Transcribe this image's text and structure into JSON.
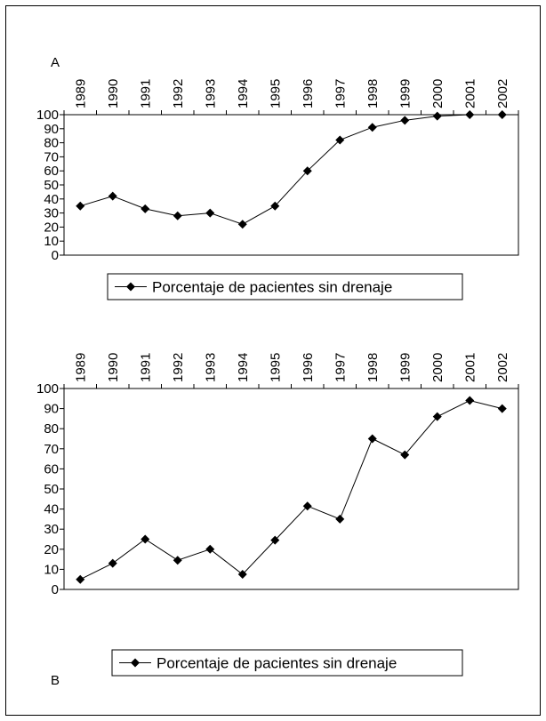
{
  "chart_data": [
    {
      "type": "line",
      "label": "A",
      "categories": [
        "1989",
        "1990",
        "1991",
        "1992",
        "1993",
        "1994",
        "1995",
        "1996",
        "1997",
        "1998",
        "1999",
        "2000",
        "2001",
        "2002"
      ],
      "series": [
        {
          "name": "Porcentaje de pacientes sin drenaje",
          "color": "#000000",
          "values": [
            35,
            42,
            33,
            28,
            30,
            22,
            35,
            60,
            82,
            91,
            96,
            99,
            100,
            100
          ]
        }
      ],
      "ylim": [
        0,
        100
      ],
      "yticks": [
        0,
        10,
        20,
        30,
        40,
        50,
        60,
        70,
        80,
        90,
        100
      ]
    },
    {
      "type": "line",
      "label": "B",
      "categories": [
        "1989",
        "1990",
        "1991",
        "1992",
        "1993",
        "1994",
        "1995",
        "1996",
        "1997",
        "1998",
        "1999",
        "2000",
        "2001",
        "2002"
      ],
      "series": [
        {
          "name": "Porcentaje de pacientes sin drenaje",
          "color": "#000000",
          "values": [
            5,
            13,
            25,
            14.5,
            20,
            7.5,
            24.5,
            41.5,
            35,
            75,
            67,
            86,
            94,
            90
          ]
        }
      ],
      "ylim": [
        0,
        100
      ],
      "yticks": [
        0,
        10,
        20,
        30,
        40,
        50,
        60,
        70,
        80,
        90,
        100
      ]
    }
  ]
}
